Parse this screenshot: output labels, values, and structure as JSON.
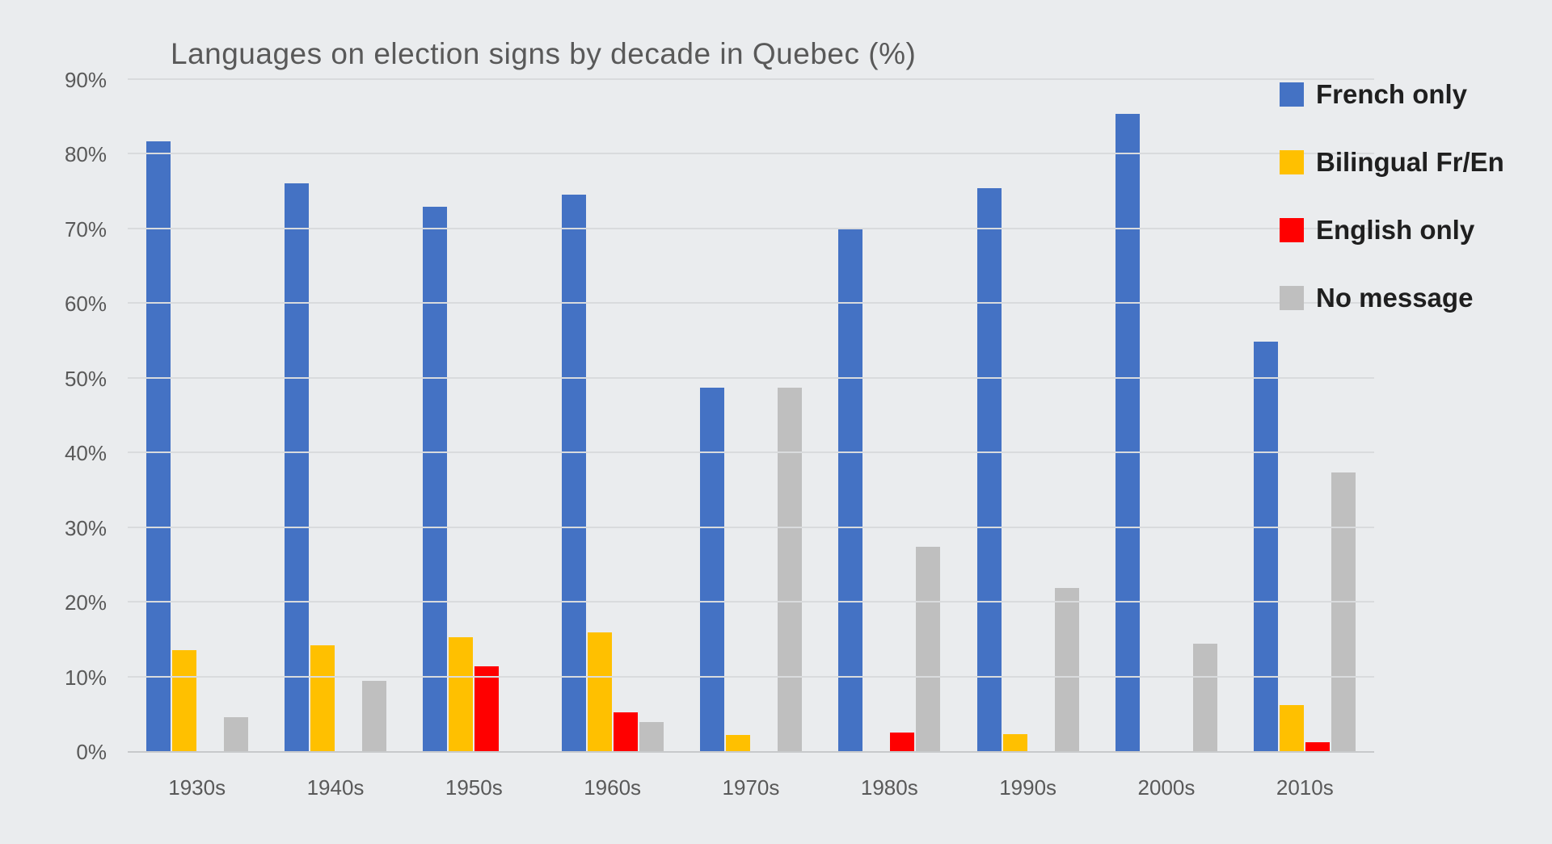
{
  "chart_data": {
    "type": "bar",
    "title": "Languages on election signs by decade in Quebec (%)",
    "categories": [
      "1930s",
      "1940s",
      "1950s",
      "1960s",
      "1970s",
      "1980s",
      "1990s",
      "2000s",
      "2010s"
    ],
    "series": [
      {
        "name": "French only",
        "color": "#4472C4",
        "values": [
          81.8,
          76.2,
          73.0,
          74.6,
          48.8,
          70.0,
          75.5,
          85.5,
          55.0
        ]
      },
      {
        "name": "Bilingual Fr/En",
        "color": "#FFC000",
        "values": [
          13.6,
          14.3,
          15.4,
          16.0,
          2.3,
          0,
          2.4,
          0,
          6.3
        ]
      },
      {
        "name": "English only",
        "color": "#FF0000",
        "values": [
          0,
          0,
          11.5,
          5.3,
          0,
          2.6,
          0,
          0,
          1.3
        ]
      },
      {
        "name": "No message",
        "color": "#BFBFBF",
        "values": [
          4.6,
          9.5,
          0,
          4.0,
          48.8,
          27.5,
          22.0,
          14.5,
          37.4
        ]
      }
    ],
    "ylim": [
      0,
      90
    ],
    "ytick_step": 10,
    "ytick_labels": [
      "0%",
      "10%",
      "20%",
      "30%",
      "40%",
      "50%",
      "60%",
      "70%",
      "80%",
      "90%"
    ],
    "xlabel": "",
    "ylabel": "",
    "grid": true,
    "legend_position": "right"
  },
  "colors": {
    "background": "#EAECEE",
    "gridline": "#D9DBDD",
    "axis_line": "#C7C9CB",
    "axis_text": "#595959",
    "title_text": "#595959",
    "legend_text": "#1F1F1F"
  }
}
